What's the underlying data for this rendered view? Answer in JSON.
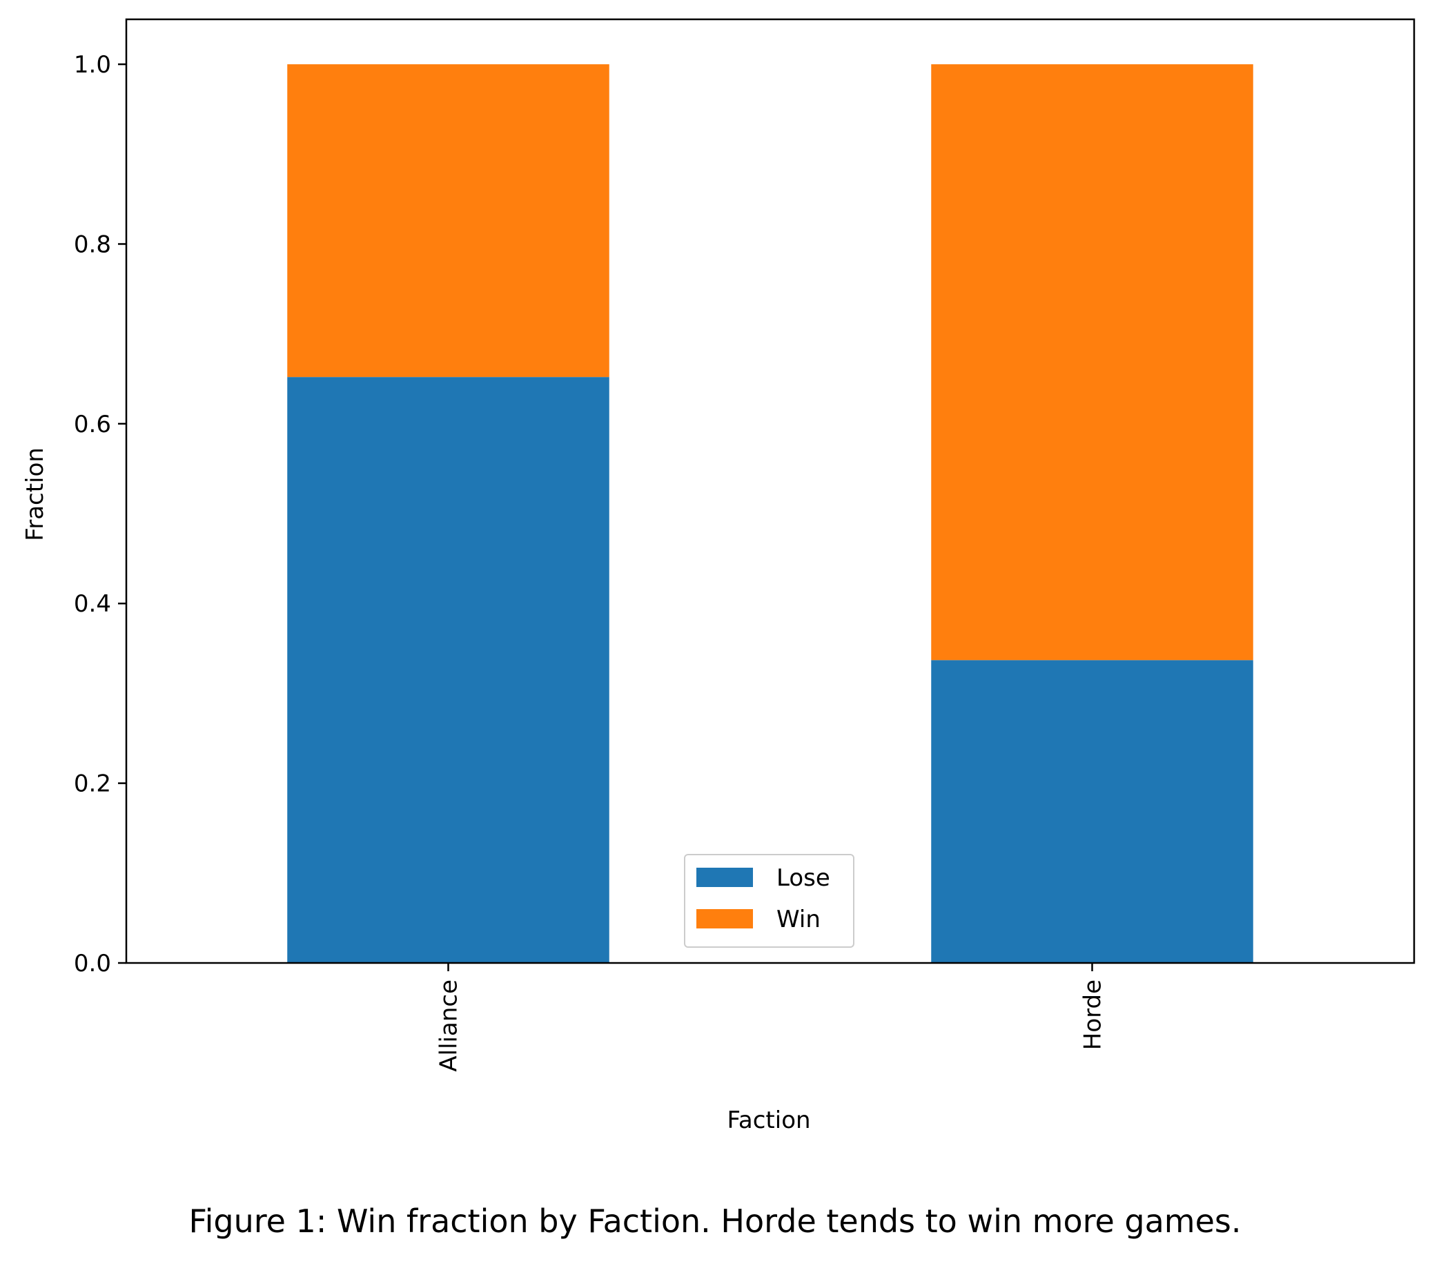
{
  "chart_data": {
    "type": "bar",
    "stacked": true,
    "categories": [
      "Alliance",
      "Horde"
    ],
    "series": [
      {
        "name": "Lose",
        "values": [
          0.652,
          0.337
        ],
        "color": "#1f77b4"
      },
      {
        "name": "Win",
        "values": [
          0.348,
          0.663
        ],
        "color": "#ff7f0e"
      }
    ],
    "title": "",
    "xlabel": "Faction",
    "ylabel": "Fraction",
    "ylim": [
      0,
      1.05
    ],
    "yticks": [
      "0.0",
      "0.2",
      "0.4",
      "0.6",
      "0.8",
      "1.0"
    ],
    "ytick_values": [
      0,
      0.2,
      0.4,
      0.6,
      0.8,
      1.0
    ],
    "xtick_rotation": "vertical",
    "grid": false,
    "legend": {
      "placement": "lower center",
      "entries": [
        "Lose",
        "Win"
      ]
    }
  },
  "caption": "Figure 1: Win fraction by Faction. Horde tends to win more games."
}
